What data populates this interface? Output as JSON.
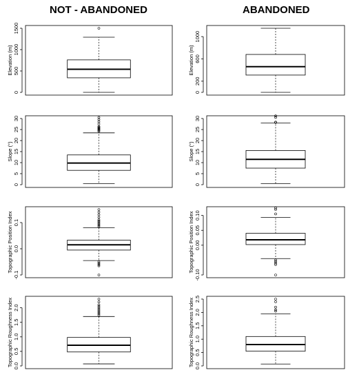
{
  "columns": [
    "NOT - ABANDONED",
    "ABANDONED"
  ],
  "chart_data": [
    {
      "type": "boxplot",
      "column": "NOT - ABANDONED",
      "ylabel": "Elevation (m)",
      "ylim": [
        0,
        1500
      ],
      "ticks": [
        0,
        500,
        1000,
        1500
      ],
      "whisker_low": 0,
      "q1": 340,
      "median": 540,
      "q3": 760,
      "whisker_high": 1290,
      "outliers": [
        1500
      ]
    },
    {
      "type": "boxplot",
      "column": "ABANDONED",
      "ylabel": "Elevation (m)",
      "ylim": [
        0,
        1150
      ],
      "ticks": [
        0,
        200,
        600,
        1000
      ],
      "whisker_low": 0,
      "q1": 310,
      "median": 460,
      "q3": 680,
      "whisker_high": 1150,
      "outliers": []
    },
    {
      "type": "boxplot",
      "column": "NOT - ABANDONED",
      "ylabel": "Slope (°)",
      "ylim": [
        0,
        30
      ],
      "ticks": [
        0,
        5,
        10,
        15,
        20,
        25,
        30
      ],
      "whisker_low": 0.5,
      "q1": 6.5,
      "median": 9.8,
      "q3": 13.5,
      "whisker_high": 23.5,
      "outliers": [
        24.2,
        24.6,
        25.0,
        25.3,
        25.7,
        26.0,
        26.4,
        27.5,
        28.5,
        29.5,
        30.5
      ]
    },
    {
      "type": "boxplot",
      "column": "ABANDONED",
      "ylabel": "Slope (°)",
      "ylim": [
        0,
        30
      ],
      "ticks": [
        0,
        5,
        10,
        15,
        20,
        25,
        30
      ],
      "whisker_low": 0.5,
      "q1": 7.5,
      "median": 11.5,
      "q3": 15.5,
      "whisker_high": 28,
      "outliers": [
        28.2,
        28.4,
        30.5,
        31.2
      ]
    },
    {
      "type": "boxplot",
      "column": "NOT - ABANDONED",
      "ylabel": "Topographic Position Index",
      "ylim": [
        -0.1,
        0.15
      ],
      "ticks": [
        -0.1,
        0.0,
        0.1
      ],
      "whisker_low": -0.045,
      "q1": -0.005,
      "median": 0.015,
      "q3": 0.033,
      "whisker_high": 0.08,
      "outliers": [
        0.085,
        0.09,
        0.095,
        0.1,
        0.105,
        0.11,
        0.12,
        0.13,
        0.14,
        0.15,
        -0.05,
        -0.055,
        -0.06,
        -0.065,
        -0.1
      ]
    },
    {
      "type": "boxplot",
      "column": "ABANDONED",
      "ylabel": "Topographic Position Index",
      "ylim": [
        -0.1,
        0.12
      ],
      "ticks": [
        -0.1,
        0.0,
        0.05,
        0.1
      ],
      "whisker_low": -0.045,
      "q1": 0.002,
      "median": 0.018,
      "q3": 0.04,
      "whisker_high": 0.093,
      "outliers": [
        0.105,
        0.12,
        0.125,
        -0.05,
        -0.055,
        -0.06,
        -0.065,
        -0.1
      ]
    },
    {
      "type": "boxplot",
      "column": "NOT - ABANDONED",
      "ylabel": "Topographic Roughness Index",
      "ylim": [
        0,
        2.3
      ],
      "ticks": [
        0.0,
        0.5,
        1.0,
        1.5,
        2.0
      ],
      "whisker_low": 0.07,
      "q1": 0.48,
      "median": 0.71,
      "q3": 0.98,
      "whisker_high": 1.7,
      "outliers": [
        1.75,
        1.8,
        1.85,
        1.9,
        1.95,
        2.0,
        2.05,
        2.1,
        2.2,
        2.3
      ]
    },
    {
      "type": "boxplot",
      "column": "ABANDONED",
      "ylabel": "Topographic Roughness Index",
      "ylim": [
        0,
        2.5
      ],
      "ticks": [
        0.0,
        0.5,
        1.0,
        1.5,
        2.0,
        2.5
      ],
      "whisker_low": 0.07,
      "q1": 0.55,
      "median": 0.8,
      "q3": 1.1,
      "whisker_high": 1.95,
      "outliers": [
        2.05,
        2.1,
        2.2,
        2.4,
        2.5
      ]
    }
  ]
}
